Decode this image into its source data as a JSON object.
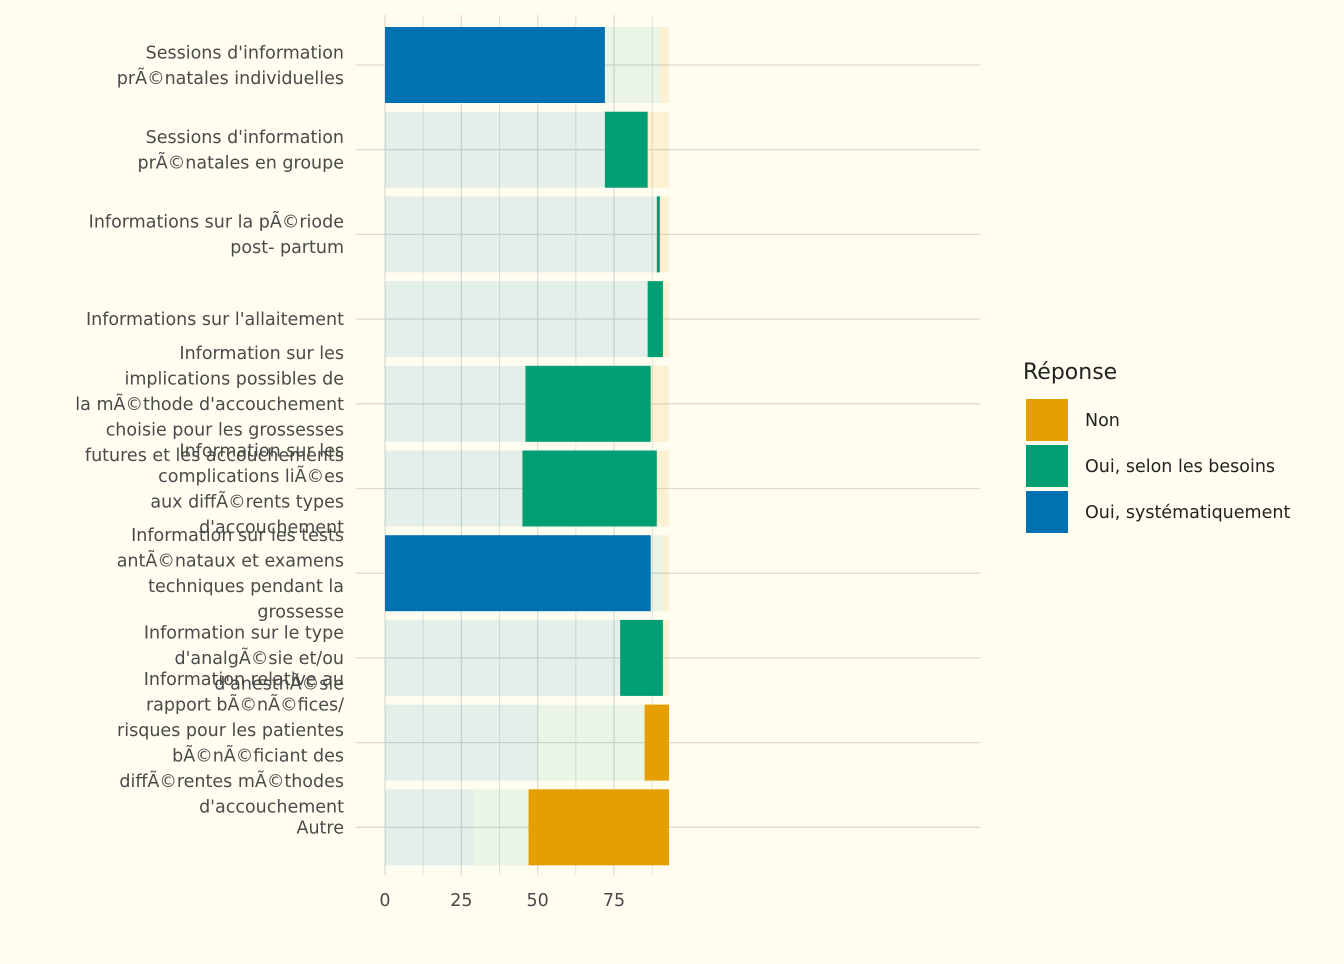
{
  "chart_data": {
    "type": "bar",
    "orientation": "horizontal",
    "stacked": true,
    "categories": [
      "Sessions d'information\nprÃ©natales individuelles",
      "Sessions d'information\nprÃ©natales en groupe",
      "Informations sur la pÃ©riode\npost- partum",
      "Informations sur l'allaitement",
      "Information sur les\nimplications possibles de\nla mÃ©thode d'accouchement\nchoisie pour les grossesses\nfutures et les accouchements",
      "Information sur les\ncomplications liÃ©es\naux diffÃ©rents types\nd'accouchement",
      "Information sur les tests\nantÃ©nataux et examens\ntechniques pendant la\ngrossesse",
      "Information sur le type\nd'analgÃ©sie et/ou\nd'anesthÃ©sie",
      "Information relative au\nrapport bÃ©nÃ©fices/\nrisques pour les patientes\nbÃ©nÃ©ficiant des\ndiffÃ©rentes mÃ©thodes\nd'accouchement",
      "Autre"
    ],
    "series": [
      {
        "name": "Oui, systématiquement",
        "color": "#0072b2",
        "values": [
          72,
          72,
          89,
          86,
          46,
          45,
          87,
          77,
          50,
          29
        ]
      },
      {
        "name": "Oui, selon les besoins",
        "color": "#009e73",
        "values": [
          18,
          14,
          1,
          5,
          41,
          44,
          4,
          14,
          35,
          18
        ]
      },
      {
        "name": "Non",
        "color": "#e69f00",
        "values": [
          3,
          7,
          3,
          2,
          6,
          4,
          2,
          2,
          8,
          46
        ]
      }
    ],
    "highlight": [
      "Oui, systématiquement",
      "Oui, selon les besoins",
      "Oui, selon les besoins",
      "Oui, selon les besoins",
      "Oui, selon les besoins",
      "Oui, selon les besoins",
      "Oui, systématiquement",
      "Oui, selon les besoins",
      "Non",
      "Non"
    ],
    "xlim": [
      0,
      97
    ],
    "xticks": [
      0,
      25,
      50,
      75
    ],
    "xlabel": "",
    "ylabel": "",
    "grid": true,
    "legend": {
      "title": "Réponse",
      "position": "right",
      "items": [
        {
          "label": "Non",
          "color": "#e69f00"
        },
        {
          "label": "Oui, selon les besoins",
          "color": "#009e73"
        },
        {
          "label": "Oui, systématiquement",
          "color": "#0072b2"
        }
      ]
    }
  }
}
